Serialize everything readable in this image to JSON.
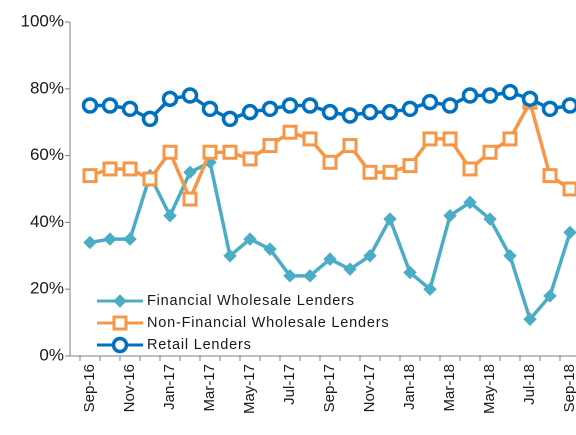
{
  "chart_data": {
    "type": "line",
    "categories": [
      "Sep-16",
      null,
      "Nov-16",
      null,
      "Jan-17",
      null,
      "Mar-17",
      null,
      "May-17",
      null,
      "Jul-17",
      null,
      "Sep-17",
      null,
      "Nov-17",
      null,
      "Jan-18",
      null,
      "Mar-18",
      null,
      "May-18",
      null,
      "Jul-18",
      null,
      "Sep-18"
    ],
    "series": [
      {
        "name": "Financial Wholesale Lenders",
        "color": "#4bacc6",
        "marker": "diamond",
        "values": [
          34,
          35,
          35,
          54,
          42,
          55,
          58,
          30,
          35,
          32,
          24,
          24,
          29,
          26,
          30,
          41,
          25,
          20,
          42,
          46,
          41,
          30,
          11,
          18,
          37
        ]
      },
      {
        "name": "Non-Financial Wholesale Lenders",
        "color": "#f79646",
        "marker": "square",
        "values": [
          54,
          56,
          56,
          53,
          61,
          47,
          61,
          61,
          59,
          63,
          67,
          65,
          58,
          63,
          55,
          55,
          57,
          65,
          65,
          56,
          61,
          65,
          76,
          54,
          50
        ]
      },
      {
        "name": "Retail Lenders",
        "color": "#0070c0",
        "marker": "circle",
        "values": [
          75,
          75,
          74,
          71,
          77,
          78,
          74,
          71,
          73,
          74,
          75,
          75,
          73,
          72,
          73,
          73,
          74,
          76,
          75,
          78,
          78,
          79,
          77,
          74,
          75
        ]
      }
    ],
    "ylim": [
      0,
      100
    ],
    "yticks": [
      {
        "value": 0,
        "label": "0%"
      },
      {
        "value": 20,
        "label": "20%"
      },
      {
        "value": 40,
        "label": "40%"
      },
      {
        "value": 60,
        "label": "60%"
      },
      {
        "value": 80,
        "label": "80%"
      },
      {
        "value": 100,
        "label": "100%"
      }
    ],
    "grid": false,
    "legend": "lower left"
  }
}
